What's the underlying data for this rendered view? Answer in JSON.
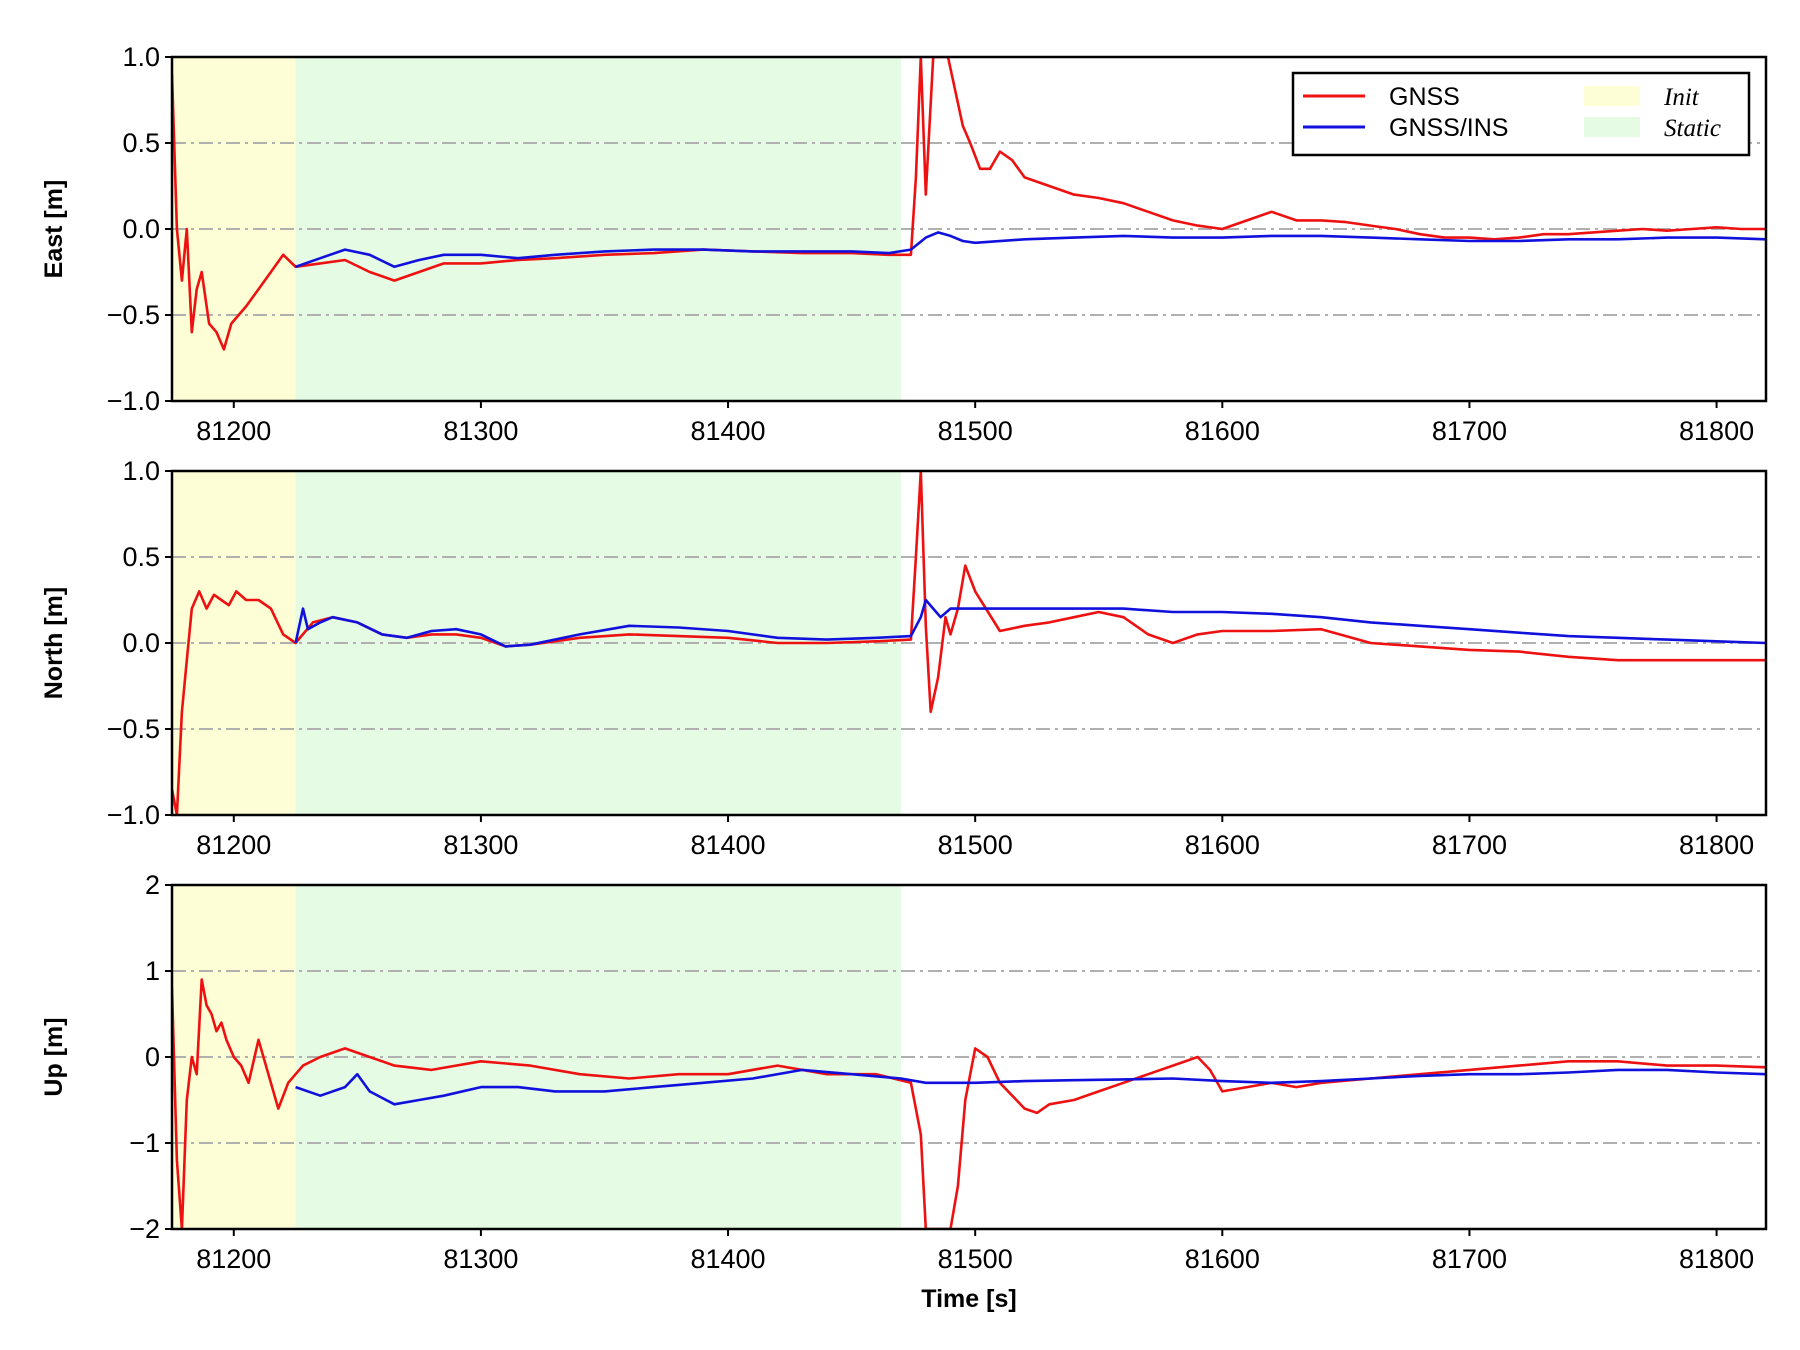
{
  "chart_data": {
    "type": "line",
    "xlabel": "Time [s]",
    "xlim": [
      81175,
      81820
    ],
    "xticks": [
      81200,
      81300,
      81400,
      81500,
      81600,
      81700,
      81800
    ],
    "colors": {
      "GNSS": "#ee1111",
      "GNSS/INS": "#1111dd",
      "Init": "#fdfdd6",
      "Static": "#e6fbe4"
    },
    "legend": {
      "placement": "top-right of top panel",
      "lines": [
        {
          "name": "GNSS",
          "color": "#ee1111"
        },
        {
          "name": "GNSS/INS",
          "color": "#1111dd"
        }
      ],
      "spans": [
        {
          "name": "Init",
          "color": "#fdfdd6"
        },
        {
          "name": "Static",
          "color": "#e6fbe4"
        }
      ]
    },
    "spans": [
      {
        "name": "Init",
        "x0": 81175,
        "x1": 81225
      },
      {
        "name": "Static",
        "x0": 81225,
        "x1": 81470
      }
    ],
    "grid": {
      "y": "dash-dot",
      "x": "off"
    },
    "panels": [
      {
        "ylabel": "East [m]",
        "ylim": [
          -1.0,
          1.0
        ],
        "yticks": [
          1.0,
          0.5,
          0.0,
          -0.5,
          -1.0
        ],
        "ytick_labels": [
          "1.0",
          "0.5",
          "0.0",
          "−0.5",
          "−1.0"
        ],
        "series": [
          {
            "name": "GNSS",
            "x": [
              81175,
              81177,
              81179,
              81181,
              81183,
              81185,
              81187,
              81190,
              81193,
              81196,
              81199,
              81202,
              81205,
              81210,
              81215,
              81220,
              81225,
              81235,
              81245,
              81255,
              81265,
              81275,
              81285,
              81300,
              81315,
              81330,
              81350,
              81370,
              81390,
              81410,
              81430,
              81450,
              81465,
              81474,
              81476,
              81478,
              81480,
              81483,
              81486,
              81489,
              81492,
              81495,
              81498,
              81502,
              81506,
              81510,
              81515,
              81520,
              81530,
              81540,
              81550,
              81560,
              81570,
              81580,
              81590,
              81600,
              81610,
              81620,
              81630,
              81640,
              81650,
              81660,
              81670,
              81680,
              81690,
              81700,
              81710,
              81720,
              81730,
              81740,
              81750,
              81760,
              81770,
              81780,
              81790,
              81800,
              81810,
              81820
            ],
            "y": [
              0.9,
              0.0,
              -0.3,
              0.0,
              -0.6,
              -0.35,
              -0.25,
              -0.55,
              -0.6,
              -0.7,
              -0.55,
              -0.5,
              -0.45,
              -0.35,
              -0.25,
              -0.15,
              -0.22,
              -0.2,
              -0.18,
              -0.25,
              -0.3,
              -0.25,
              -0.2,
              -0.2,
              -0.18,
              -0.17,
              -0.15,
              -0.14,
              -0.12,
              -0.13,
              -0.14,
              -0.14,
              -0.15,
              -0.15,
              0.3,
              1.0,
              0.2,
              1.0,
              1.0,
              1.0,
              0.8,
              0.6,
              0.5,
              0.35,
              0.35,
              0.45,
              0.4,
              0.3,
              0.25,
              0.2,
              0.18,
              0.15,
              0.1,
              0.05,
              0.02,
              0.0,
              0.05,
              0.1,
              0.05,
              0.05,
              0.04,
              0.02,
              0.0,
              -0.03,
              -0.05,
              -0.05,
              -0.06,
              -0.05,
              -0.03,
              -0.03,
              -0.02,
              -0.01,
              0.0,
              -0.01,
              0.0,
              0.01,
              0.0,
              0.0
            ]
          },
          {
            "name": "GNSS/INS",
            "x": [
              81225,
              81235,
              81245,
              81255,
              81265,
              81275,
              81285,
              81300,
              81315,
              81330,
              81350,
              81370,
              81390,
              81410,
              81430,
              81450,
              81465,
              81474,
              81480,
              81485,
              81490,
              81495,
              81500,
              81520,
              81540,
              81560,
              81580,
              81600,
              81620,
              81640,
              81660,
              81680,
              81700,
              81720,
              81740,
              81760,
              81780,
              81800,
              81820
            ],
            "y": [
              -0.22,
              -0.17,
              -0.12,
              -0.15,
              -0.22,
              -0.18,
              -0.15,
              -0.15,
              -0.17,
              -0.15,
              -0.13,
              -0.12,
              -0.12,
              -0.13,
              -0.13,
              -0.13,
              -0.14,
              -0.12,
              -0.05,
              -0.02,
              -0.04,
              -0.07,
              -0.08,
              -0.06,
              -0.05,
              -0.04,
              -0.05,
              -0.05,
              -0.04,
              -0.04,
              -0.05,
              -0.06,
              -0.07,
              -0.07,
              -0.06,
              -0.06,
              -0.05,
              -0.05,
              -0.06
            ]
          }
        ]
      },
      {
        "ylabel": "North [m]",
        "ylim": [
          -1.0,
          1.0
        ],
        "yticks": [
          1.0,
          0.5,
          0.0,
          -0.5,
          -1.0
        ],
        "ytick_labels": [
          "1.0",
          "0.5",
          "0.0",
          "−0.5",
          "−1.0"
        ],
        "series": [
          {
            "name": "GNSS",
            "x": [
              81175,
              81177,
              81179,
              81181,
              81183,
              81186,
              81189,
              81192,
              81195,
              81198,
              81201,
              81205,
              81210,
              81215,
              81220,
              81225,
              81232,
              81240,
              81250,
              81260,
              81270,
              81280,
              81290,
              81300,
              81310,
              81320,
              81340,
              81360,
              81380,
              81400,
              81420,
              81440,
              81460,
              81474,
              81476,
              81478,
              81480,
              81482,
              81485,
              81488,
              81490,
              81493,
              81496,
              81500,
              81510,
              81520,
              81530,
              81540,
              81550,
              81560,
              81570,
              81580,
              81590,
              81600,
              81620,
              81640,
              81660,
              81680,
              81700,
              81720,
              81740,
              81760,
              81780,
              81800,
              81820
            ],
            "y": [
              -0.85,
              -1.0,
              -0.4,
              -0.1,
              0.2,
              0.3,
              0.2,
              0.28,
              0.25,
              0.22,
              0.3,
              0.25,
              0.25,
              0.2,
              0.05,
              0.0,
              0.12,
              0.15,
              0.12,
              0.05,
              0.03,
              0.05,
              0.05,
              0.03,
              -0.02,
              -0.01,
              0.03,
              0.05,
              0.04,
              0.03,
              0.0,
              0.0,
              0.01,
              0.02,
              0.5,
              1.0,
              0.1,
              -0.4,
              -0.2,
              0.15,
              0.05,
              0.2,
              0.45,
              0.3,
              0.07,
              0.1,
              0.12,
              0.15,
              0.18,
              0.15,
              0.05,
              0.0,
              0.05,
              0.07,
              0.07,
              0.08,
              0.0,
              -0.02,
              -0.04,
              -0.05,
              -0.08,
              -0.1,
              -0.1,
              -0.1,
              -0.1
            ]
          },
          {
            "name": "GNSS/INS",
            "x": [
              81225,
              81228,
              81230,
              81235,
              81240,
              81250,
              81260,
              81270,
              81280,
              81290,
              81300,
              81310,
              81320,
              81340,
              81360,
              81380,
              81400,
              81420,
              81440,
              81460,
              81474,
              81478,
              81480,
              81483,
              81486,
              81490,
              81500,
              81520,
              81540,
              81560,
              81580,
              81600,
              81620,
              81640,
              81660,
              81680,
              81700,
              81720,
              81740,
              81760,
              81780,
              81800,
              81820
            ],
            "y": [
              0.0,
              0.2,
              0.08,
              0.12,
              0.15,
              0.12,
              0.05,
              0.03,
              0.07,
              0.08,
              0.05,
              -0.02,
              -0.01,
              0.05,
              0.1,
              0.09,
              0.07,
              0.03,
              0.02,
              0.03,
              0.04,
              0.15,
              0.25,
              0.2,
              0.15,
              0.2,
              0.2,
              0.2,
              0.2,
              0.2,
              0.18,
              0.18,
              0.17,
              0.15,
              0.12,
              0.1,
              0.08,
              0.06,
              0.04,
              0.03,
              0.02,
              0.01,
              0.0
            ]
          }
        ]
      },
      {
        "ylabel": "Up [m]",
        "ylim": [
          -2,
          2
        ],
        "yticks": [
          2,
          1,
          0,
          -1,
          -2
        ],
        "ytick_labels": [
          "2",
          "1",
          "0",
          "−1",
          "−2"
        ],
        "series": [
          {
            "name": "GNSS",
            "x": [
              81175,
              81177,
              81179,
              81181,
              81183,
              81185,
              81187,
              81189,
              81191,
              81193,
              81195,
              81197,
              81200,
              81203,
              81206,
              81210,
              81214,
              81218,
              81222,
              81225,
              81228,
              81235,
              81245,
              81255,
              81265,
              81280,
              81300,
              81320,
              81340,
              81360,
              81380,
              81400,
              81420,
              81440,
              81460,
              81474,
              81478,
              81480,
              81485,
              81490,
              81493,
              81496,
              81500,
              81505,
              81510,
              81520,
              81525,
              81530,
              81540,
              81550,
              81560,
              81570,
              81580,
              81590,
              81595,
              81600,
              81610,
              81620,
              81630,
              81640,
              81660,
              81680,
              81700,
              81720,
              81740,
              81760,
              81780,
              81800,
              81820
            ],
            "y": [
              0.8,
              -1.2,
              -2.0,
              -0.5,
              0.0,
              -0.2,
              0.9,
              0.6,
              0.5,
              0.3,
              0.4,
              0.2,
              0.0,
              -0.1,
              -0.3,
              0.2,
              -0.2,
              -0.6,
              -0.3,
              -0.2,
              -0.1,
              0.0,
              0.1,
              0.0,
              -0.1,
              -0.15,
              -0.05,
              -0.1,
              -0.2,
              -0.25,
              -0.2,
              -0.2,
              -0.1,
              -0.2,
              -0.2,
              -0.3,
              -0.9,
              -2.0,
              -2.0,
              -2.0,
              -1.5,
              -0.5,
              0.1,
              0.0,
              -0.3,
              -0.6,
              -0.65,
              -0.55,
              -0.5,
              -0.4,
              -0.3,
              -0.2,
              -0.1,
              0.0,
              -0.15,
              -0.4,
              -0.35,
              -0.3,
              -0.35,
              -0.3,
              -0.25,
              -0.2,
              -0.15,
              -0.1,
              -0.05,
              -0.05,
              -0.1,
              -0.1,
              -0.12
            ]
          },
          {
            "name": "GNSS/INS",
            "x": [
              81225,
              81235,
              81245,
              81250,
              81255,
              81265,
              81275,
              81285,
              81300,
              81315,
              81330,
              81350,
              81370,
              81390,
              81410,
              81430,
              81450,
              81470,
              81480,
              81500,
              81520,
              81540,
              81560,
              81580,
              81600,
              81620,
              81640,
              81660,
              81680,
              81700,
              81720,
              81740,
              81760,
              81780,
              81800,
              81820
            ],
            "y": [
              -0.35,
              -0.45,
              -0.35,
              -0.2,
              -0.4,
              -0.55,
              -0.5,
              -0.45,
              -0.35,
              -0.35,
              -0.4,
              -0.4,
              -0.35,
              -0.3,
              -0.25,
              -0.15,
              -0.2,
              -0.25,
              -0.3,
              -0.3,
              -0.28,
              -0.27,
              -0.26,
              -0.25,
              -0.28,
              -0.3,
              -0.28,
              -0.25,
              -0.22,
              -0.2,
              -0.2,
              -0.18,
              -0.15,
              -0.15,
              -0.18,
              -0.2
            ]
          }
        ]
      }
    ]
  }
}
